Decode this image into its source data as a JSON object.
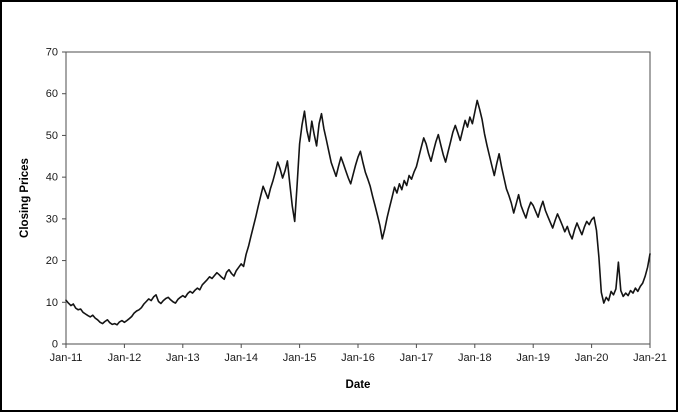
{
  "chart_data": {
    "type": "line",
    "title": "",
    "xlabel": "Date",
    "ylabel": "Closing Prices",
    "ylim": [
      0,
      70
    ],
    "yticks": [
      0,
      10,
      20,
      30,
      40,
      50,
      60,
      70
    ],
    "xticks": [
      "Jan-11",
      "Jan-12",
      "Jan-13",
      "Jan-14",
      "Jan-15",
      "Jan-16",
      "Jan-17",
      "Jan-18",
      "Jan-19",
      "Jan-20",
      "Jan-21"
    ],
    "grid": false,
    "legend": null,
    "line_color": "#141414",
    "series": [
      {
        "name": "Closing Prices",
        "step_months": 0.5,
        "values": [
          10.5,
          9.8,
          9.2,
          9.6,
          8.6,
          8.2,
          8.4,
          7.6,
          7.2,
          6.8,
          6.5,
          6.9,
          6.2,
          5.8,
          5.2,
          4.9,
          5.4,
          5.8,
          5.1,
          4.7,
          4.9,
          4.6,
          5.3,
          5.6,
          5.2,
          5.6,
          6.1,
          6.6,
          7.4,
          7.9,
          8.2,
          8.7,
          9.6,
          10.2,
          10.8,
          10.4,
          11.3,
          11.8,
          10.2,
          9.7,
          10.4,
          10.9,
          11.2,
          10.6,
          10.1,
          9.8,
          10.7,
          11.2,
          11.6,
          11.2,
          12.1,
          12.6,
          12.2,
          12.9,
          13.4,
          13.0,
          14.2,
          14.8,
          15.4,
          16.1,
          15.7,
          16.4,
          17.1,
          16.6,
          16.0,
          15.5,
          17.2,
          17.8,
          16.9,
          16.3,
          17.6,
          18.4,
          19.2,
          18.6,
          21.5,
          23.4,
          25.8,
          28.2,
          30.5,
          33.0,
          35.5,
          37.8,
          36.4,
          34.9,
          37.2,
          39.0,
          41.2,
          43.6,
          42.0,
          39.8,
          41.5,
          43.9,
          38.2,
          33.0,
          29.4,
          38.5,
          48.0,
          52.5,
          55.8,
          51.2,
          48.6,
          53.4,
          50.2,
          47.5,
          52.8,
          55.2,
          51.6,
          48.9,
          46.2,
          43.5,
          41.8,
          40.2,
          42.6,
          44.8,
          43.2,
          41.5,
          39.8,
          38.4,
          40.6,
          42.9,
          44.8,
          46.2,
          43.5,
          41.2,
          39.6,
          37.8,
          35.4,
          33.2,
          30.8,
          28.4,
          25.2,
          27.6,
          30.4,
          32.8,
          35.2,
          37.6,
          36.2,
          38.4,
          37.0,
          39.2,
          38.0,
          40.4,
          39.5,
          41.2,
          42.5,
          44.8,
          47.2,
          49.4,
          48.0,
          45.6,
          43.8,
          46.2,
          48.5,
          50.2,
          47.8,
          45.4,
          43.6,
          46.0,
          48.4,
          50.8,
          52.4,
          50.6,
          48.8,
          51.2,
          53.6,
          52.0,
          54.4,
          52.8,
          55.6,
          58.4,
          56.2,
          53.8,
          50.4,
          47.6,
          45.2,
          42.8,
          40.4,
          43.2,
          45.6,
          42.4,
          39.8,
          37.2,
          35.6,
          33.8,
          31.4,
          33.6,
          35.8,
          33.2,
          31.6,
          30.2,
          32.4,
          34.0,
          33.2,
          31.8,
          30.4,
          32.6,
          34.2,
          32.0,
          30.6,
          29.2,
          27.8,
          29.6,
          31.2,
          29.8,
          28.4,
          26.9,
          28.2,
          26.4,
          25.2,
          27.4,
          29.0,
          27.6,
          26.2,
          28.0,
          29.4,
          28.6,
          29.8,
          30.4,
          27.2,
          20.8,
          12.4,
          9.8,
          11.2,
          10.4,
          12.6,
          11.8,
          13.2,
          19.6,
          12.8,
          11.4,
          12.2,
          11.6,
          12.8,
          12.2,
          13.4,
          12.6,
          13.8,
          14.6,
          16.2,
          18.4,
          21.6
        ]
      }
    ]
  }
}
